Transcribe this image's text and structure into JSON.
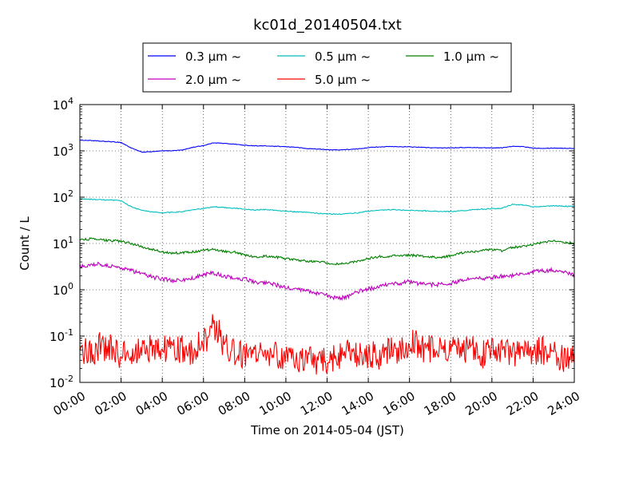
{
  "chart_data": {
    "type": "line",
    "title": "kc01d_20140504.txt",
    "xlabel": "Time on 2014-05-04 (JST)",
    "ylabel": "Count / L",
    "x_unit": "hour of day (JST)",
    "xlim": [
      0,
      24
    ],
    "ylim": [
      0.01,
      10000
    ],
    "yscale": "log",
    "grid": true,
    "legend_position": "top-center",
    "x_ticks": [
      {
        "value": 0,
        "label": "00:00"
      },
      {
        "value": 2,
        "label": "02:00"
      },
      {
        "value": 4,
        "label": "04:00"
      },
      {
        "value": 6,
        "label": "06:00"
      },
      {
        "value": 8,
        "label": "08:00"
      },
      {
        "value": 10,
        "label": "10:00"
      },
      {
        "value": 12,
        "label": "12:00"
      },
      {
        "value": 14,
        "label": "14:00"
      },
      {
        "value": 16,
        "label": "16:00"
      },
      {
        "value": 18,
        "label": "18:00"
      },
      {
        "value": 20,
        "label": "20:00"
      },
      {
        "value": 22,
        "label": "22:00"
      },
      {
        "value": 24,
        "label": "24:00"
      }
    ],
    "y_ticks": [
      {
        "value": 0.01,
        "base": "10",
        "exp": "-2"
      },
      {
        "value": 0.1,
        "base": "10",
        "exp": "-1"
      },
      {
        "value": 1,
        "base": "10",
        "exp": "0"
      },
      {
        "value": 10,
        "base": "10",
        "exp": "1"
      },
      {
        "value": 100,
        "base": "10",
        "exp": "2"
      },
      {
        "value": 1000,
        "base": "10",
        "exp": "3"
      },
      {
        "value": 10000,
        "base": "10",
        "exp": "4"
      }
    ],
    "x": [
      0,
      0.5,
      1,
      1.5,
      2,
      2.5,
      3,
      3.5,
      4,
      4.5,
      5,
      5.5,
      6,
      6.5,
      7,
      7.5,
      8,
      8.5,
      9,
      9.5,
      10,
      10.5,
      11,
      11.5,
      12,
      12.5,
      13,
      13.5,
      14,
      14.5,
      15,
      15.5,
      16,
      16.5,
      17,
      17.5,
      18,
      18.5,
      19,
      19.5,
      20,
      20.5,
      21,
      21.5,
      22,
      22.5,
      23,
      23.5,
      24
    ],
    "series": [
      {
        "name": "0.3 μm ~",
        "color": "#0000ff",
        "values": [
          1700,
          1680,
          1620,
          1580,
          1520,
          1150,
          940,
          960,
          1000,
          1010,
          1050,
          1200,
          1300,
          1500,
          1450,
          1400,
          1320,
          1290,
          1280,
          1250,
          1230,
          1200,
          1120,
          1100,
          1060,
          1050,
          1070,
          1100,
          1180,
          1220,
          1240,
          1230,
          1220,
          1200,
          1170,
          1160,
          1170,
          1180,
          1180,
          1170,
          1160,
          1170,
          1250,
          1240,
          1150,
          1140,
          1150,
          1140,
          1130
        ]
      },
      {
        "name": "0.5 μm ~",
        "color": "#00bfbf",
        "values": [
          92,
          90,
          88,
          86,
          84,
          62,
          52,
          48,
          46,
          47,
          49,
          53,
          57,
          62,
          60,
          58,
          55,
          53,
          54,
          52,
          50,
          48,
          47,
          45,
          44,
          43,
          44,
          46,
          50,
          52,
          54,
          53,
          52,
          51,
          50,
          49,
          49,
          51,
          53,
          55,
          56,
          58,
          70,
          68,
          62,
          63,
          65,
          64,
          63
        ]
      },
      {
        "name": "1.0 μm ~",
        "color": "#008000",
        "values": [
          12,
          12.5,
          12,
          11.5,
          11.2,
          10,
          8.5,
          7.5,
          6.5,
          6.2,
          6.3,
          6.6,
          7.2,
          7.5,
          6.8,
          6.5,
          5.6,
          5.2,
          5.3,
          5.1,
          4.7,
          4.4,
          4.2,
          4.1,
          3.8,
          3.6,
          3.7,
          4.2,
          4.7,
          5.2,
          5.3,
          5.5,
          5.6,
          5.4,
          5.1,
          5.0,
          5.4,
          6.2,
          6.6,
          7.1,
          7.3,
          7.0,
          8.3,
          8.6,
          9.6,
          10.6,
          11.2,
          10.6,
          10.1
        ]
      },
      {
        "name": "2.0 μm ~",
        "color": "#bf00bf",
        "values": [
          3.2,
          3.5,
          3.6,
          3.2,
          3.0,
          2.6,
          2.2,
          1.9,
          1.7,
          1.6,
          1.6,
          1.8,
          2.1,
          2.3,
          2.0,
          1.8,
          1.7,
          1.5,
          1.4,
          1.3,
          1.1,
          1.0,
          0.95,
          0.85,
          0.75,
          0.65,
          0.7,
          0.9,
          1.05,
          1.15,
          1.3,
          1.4,
          1.5,
          1.35,
          1.3,
          1.3,
          1.4,
          1.55,
          1.7,
          1.75,
          1.85,
          1.95,
          2.0,
          2.2,
          2.4,
          2.6,
          2.7,
          2.4,
          2.1
        ]
      },
      {
        "name": "5.0 μm ~",
        "color": "#ff0000",
        "values": [
          0.05,
          0.045,
          0.06,
          0.055,
          0.035,
          0.045,
          0.05,
          0.055,
          0.06,
          0.045,
          0.05,
          0.05,
          0.07,
          0.17,
          0.07,
          0.045,
          0.04,
          0.05,
          0.035,
          0.04,
          0.03,
          0.032,
          0.035,
          0.03,
          0.03,
          0.035,
          0.04,
          0.035,
          0.04,
          0.038,
          0.045,
          0.045,
          0.07,
          0.06,
          0.05,
          0.055,
          0.045,
          0.05,
          0.06,
          0.04,
          0.045,
          0.05,
          0.04,
          0.045,
          0.05,
          0.05,
          0.04,
          0.035,
          0.03
        ]
      }
    ]
  }
}
